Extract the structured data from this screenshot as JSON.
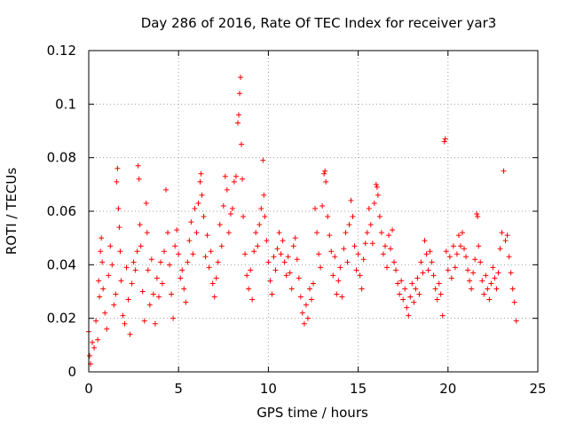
{
  "chart_data": {
    "type": "scatter",
    "title": "Day 286 of 2016, Rate Of TEC Index for receiver yar3",
    "xlabel": "GPS time / hours",
    "ylabel": "ROTI / TECUs",
    "xlim": [
      0,
      25
    ],
    "ylim": [
      0,
      0.12
    ],
    "x_ticks": [
      0,
      5,
      10,
      15,
      20,
      25
    ],
    "x_tick_labels": [
      "0",
      "5",
      "10",
      "15",
      "20",
      "25"
    ],
    "y_ticks": [
      0,
      0.02,
      0.04,
      0.06,
      0.08,
      0.1,
      0.12
    ],
    "y_tick_labels": [
      "0",
      "0.02",
      "0.04",
      "0.06",
      "0.08",
      "0.1",
      "0.12"
    ],
    "grid": true,
    "marker": "plus",
    "color": "#ff0000",
    "series": [
      {
        "name": "ROTI",
        "points": [
          [
            0.0,
            0.015
          ],
          [
            0.05,
            0.006
          ],
          [
            0.1,
            0.003
          ],
          [
            0.2,
            0.011
          ],
          [
            0.3,
            0.009
          ],
          [
            0.4,
            0.019
          ],
          [
            0.5,
            0.012
          ],
          [
            0.55,
            0.034
          ],
          [
            0.6,
            0.028
          ],
          [
            0.65,
            0.045
          ],
          [
            0.7,
            0.05
          ],
          [
            0.75,
            0.041
          ],
          [
            0.8,
            0.031
          ],
          [
            0.9,
            0.022
          ],
          [
            1.0,
            0.016
          ],
          [
            1.1,
            0.036
          ],
          [
            1.2,
            0.047
          ],
          [
            1.3,
            0.04
          ],
          [
            1.4,
            0.025
          ],
          [
            1.5,
            0.029
          ],
          [
            1.55,
            0.071
          ],
          [
            1.6,
            0.076
          ],
          [
            1.65,
            0.061
          ],
          [
            1.7,
            0.054
          ],
          [
            1.75,
            0.045
          ],
          [
            1.8,
            0.034
          ],
          [
            1.9,
            0.021
          ],
          [
            2.0,
            0.018
          ],
          [
            2.1,
            0.039
          ],
          [
            2.2,
            0.027
          ],
          [
            2.3,
            0.014
          ],
          [
            2.4,
            0.033
          ],
          [
            2.5,
            0.041
          ],
          [
            2.6,
            0.038
          ],
          [
            2.7,
            0.045
          ],
          [
            2.75,
            0.077
          ],
          [
            2.8,
            0.072
          ],
          [
            2.85,
            0.055
          ],
          [
            2.9,
            0.047
          ],
          [
            3.0,
            0.03
          ],
          [
            3.1,
            0.019
          ],
          [
            3.2,
            0.063
          ],
          [
            3.25,
            0.052
          ],
          [
            3.3,
            0.038
          ],
          [
            3.4,
            0.025
          ],
          [
            3.5,
            0.042
          ],
          [
            3.6,
            0.029
          ],
          [
            3.7,
            0.018
          ],
          [
            3.8,
            0.035
          ],
          [
            3.9,
            0.028
          ],
          [
            4.0,
            0.041
          ],
          [
            4.1,
            0.033
          ],
          [
            4.2,
            0.045
          ],
          [
            4.3,
            0.068
          ],
          [
            4.4,
            0.052
          ],
          [
            4.5,
            0.04
          ],
          [
            4.6,
            0.029
          ],
          [
            4.7,
            0.02
          ],
          [
            4.8,
            0.047
          ],
          [
            4.9,
            0.053
          ],
          [
            5.0,
            0.044
          ],
          [
            5.1,
            0.035
          ],
          [
            5.2,
            0.038
          ],
          [
            5.3,
            0.031
          ],
          [
            5.4,
            0.026
          ],
          [
            5.5,
            0.041
          ],
          [
            5.6,
            0.049
          ],
          [
            5.7,
            0.056
          ],
          [
            5.8,
            0.044
          ],
          [
            5.9,
            0.061
          ],
          [
            6.0,
            0.052
          ],
          [
            6.1,
            0.063
          ],
          [
            6.2,
            0.071
          ],
          [
            6.25,
            0.074
          ],
          [
            6.3,
            0.066
          ],
          [
            6.4,
            0.058
          ],
          [
            6.5,
            0.043
          ],
          [
            6.6,
            0.051
          ],
          [
            6.7,
            0.039
          ],
          [
            6.8,
            0.045
          ],
          [
            6.9,
            0.033
          ],
          [
            7.0,
            0.028
          ],
          [
            7.1,
            0.035
          ],
          [
            7.2,
            0.041
          ],
          [
            7.3,
            0.055
          ],
          [
            7.4,
            0.047
          ],
          [
            7.5,
            0.062
          ],
          [
            7.6,
            0.073
          ],
          [
            7.7,
            0.068
          ],
          [
            7.8,
            0.052
          ],
          [
            7.9,
            0.059
          ],
          [
            8.0,
            0.061
          ],
          [
            8.1,
            0.071
          ],
          [
            8.2,
            0.073
          ],
          [
            8.3,
            0.093
          ],
          [
            8.35,
            0.096
          ],
          [
            8.4,
            0.104
          ],
          [
            8.45,
            0.11
          ],
          [
            8.5,
            0.085
          ],
          [
            8.55,
            0.072
          ],
          [
            8.6,
            0.058
          ],
          [
            8.7,
            0.044
          ],
          [
            8.8,
            0.036
          ],
          [
            8.9,
            0.031
          ],
          [
            9.0,
            0.038
          ],
          [
            9.1,
            0.027
          ],
          [
            9.2,
            0.045
          ],
          [
            9.3,
            0.052
          ],
          [
            9.4,
            0.047
          ],
          [
            9.5,
            0.055
          ],
          [
            9.6,
            0.061
          ],
          [
            9.7,
            0.079
          ],
          [
            9.75,
            0.066
          ],
          [
            9.8,
            0.058
          ],
          [
            9.9,
            0.049
          ],
          [
            10.0,
            0.041
          ],
          [
            10.1,
            0.034
          ],
          [
            10.2,
            0.029
          ],
          [
            10.3,
            0.043
          ],
          [
            10.4,
            0.038
          ],
          [
            10.5,
            0.046
          ],
          [
            10.6,
            0.052
          ],
          [
            10.7,
            0.044
          ],
          [
            10.8,
            0.049
          ],
          [
            10.9,
            0.041
          ],
          [
            11.0,
            0.036
          ],
          [
            11.1,
            0.043
          ],
          [
            11.2,
            0.037
          ],
          [
            11.3,
            0.031
          ],
          [
            11.4,
            0.047
          ],
          [
            11.5,
            0.05
          ],
          [
            11.6,
            0.042
          ],
          [
            11.7,
            0.035
          ],
          [
            11.8,
            0.028
          ],
          [
            11.9,
            0.022
          ],
          [
            12.0,
            0.018
          ],
          [
            12.1,
            0.025
          ],
          [
            12.2,
            0.02
          ],
          [
            12.3,
            0.031
          ],
          [
            12.4,
            0.027
          ],
          [
            12.5,
            0.033
          ],
          [
            12.6,
            0.061
          ],
          [
            12.7,
            0.052
          ],
          [
            12.8,
            0.044
          ],
          [
            12.9,
            0.039
          ],
          [
            13.0,
            0.062
          ],
          [
            13.1,
            0.074
          ],
          [
            13.15,
            0.075
          ],
          [
            13.2,
            0.071
          ],
          [
            13.3,
            0.058
          ],
          [
            13.4,
            0.051
          ],
          [
            13.5,
            0.045
          ],
          [
            13.6,
            0.036
          ],
          [
            13.7,
            0.043
          ],
          [
            13.8,
            0.029
          ],
          [
            13.9,
            0.034
          ],
          [
            14.0,
            0.039
          ],
          [
            14.1,
            0.028
          ],
          [
            14.2,
            0.046
          ],
          [
            14.3,
            0.052
          ],
          [
            14.4,
            0.041
          ],
          [
            14.5,
            0.055
          ],
          [
            14.6,
            0.064
          ],
          [
            14.7,
            0.058
          ],
          [
            14.8,
            0.047
          ],
          [
            14.9,
            0.038
          ],
          [
            15.0,
            0.044
          ],
          [
            15.1,
            0.036
          ],
          [
            15.2,
            0.031
          ],
          [
            15.3,
            0.042
          ],
          [
            15.4,
            0.048
          ],
          [
            15.5,
            0.052
          ],
          [
            15.6,
            0.061
          ],
          [
            15.7,
            0.055
          ],
          [
            15.8,
            0.048
          ],
          [
            15.9,
            0.063
          ],
          [
            16.0,
            0.07
          ],
          [
            16.05,
            0.069
          ],
          [
            16.1,
            0.066
          ],
          [
            16.2,
            0.058
          ],
          [
            16.3,
            0.052
          ],
          [
            16.4,
            0.044
          ],
          [
            16.5,
            0.047
          ],
          [
            16.6,
            0.039
          ],
          [
            16.7,
            0.051
          ],
          [
            16.8,
            0.046
          ],
          [
            16.9,
            0.053
          ],
          [
            17.0,
            0.041
          ],
          [
            17.1,
            0.038
          ],
          [
            17.2,
            0.033
          ],
          [
            17.3,
            0.029
          ],
          [
            17.4,
            0.034
          ],
          [
            17.5,
            0.027
          ],
          [
            17.6,
            0.031
          ],
          [
            17.7,
            0.024
          ],
          [
            17.8,
            0.021
          ],
          [
            17.9,
            0.028
          ],
          [
            18.0,
            0.033
          ],
          [
            18.1,
            0.026
          ],
          [
            18.2,
            0.031
          ],
          [
            18.3,
            0.035
          ],
          [
            18.4,
            0.029
          ],
          [
            18.5,
            0.041
          ],
          [
            18.6,
            0.037
          ],
          [
            18.7,
            0.049
          ],
          [
            18.8,
            0.044
          ],
          [
            18.9,
            0.038
          ],
          [
            19.0,
            0.045
          ],
          [
            19.1,
            0.041
          ],
          [
            19.2,
            0.036
          ],
          [
            19.3,
            0.031
          ],
          [
            19.4,
            0.027
          ],
          [
            19.5,
            0.033
          ],
          [
            19.6,
            0.029
          ],
          [
            19.7,
            0.021
          ],
          [
            19.8,
            0.086
          ],
          [
            19.85,
            0.087
          ],
          [
            19.9,
            0.045
          ],
          [
            20.0,
            0.038
          ],
          [
            20.1,
            0.043
          ],
          [
            20.2,
            0.035
          ],
          [
            20.3,
            0.047
          ],
          [
            20.4,
            0.039
          ],
          [
            20.5,
            0.044
          ],
          [
            20.6,
            0.051
          ],
          [
            20.7,
            0.047
          ],
          [
            20.8,
            0.052
          ],
          [
            20.9,
            0.046
          ],
          [
            21.0,
            0.043
          ],
          [
            21.1,
            0.038
          ],
          [
            21.2,
            0.034
          ],
          [
            21.3,
            0.031
          ],
          [
            21.4,
            0.037
          ],
          [
            21.5,
            0.042
          ],
          [
            21.6,
            0.059
          ],
          [
            21.65,
            0.058
          ],
          [
            21.7,
            0.047
          ],
          [
            21.8,
            0.041
          ],
          [
            21.9,
            0.034
          ],
          [
            22.0,
            0.029
          ],
          [
            22.1,
            0.036
          ],
          [
            22.2,
            0.031
          ],
          [
            22.3,
            0.027
          ],
          [
            22.4,
            0.033
          ],
          [
            22.5,
            0.039
          ],
          [
            22.6,
            0.035
          ],
          [
            22.7,
            0.031
          ],
          [
            22.8,
            0.037
          ],
          [
            22.9,
            0.046
          ],
          [
            23.0,
            0.052
          ],
          [
            23.1,
            0.075
          ],
          [
            23.2,
            0.049
          ],
          [
            23.3,
            0.051
          ],
          [
            23.4,
            0.043
          ],
          [
            23.5,
            0.037
          ],
          [
            23.6,
            0.031
          ],
          [
            23.7,
            0.026
          ],
          [
            23.8,
            0.019
          ]
        ]
      }
    ]
  }
}
